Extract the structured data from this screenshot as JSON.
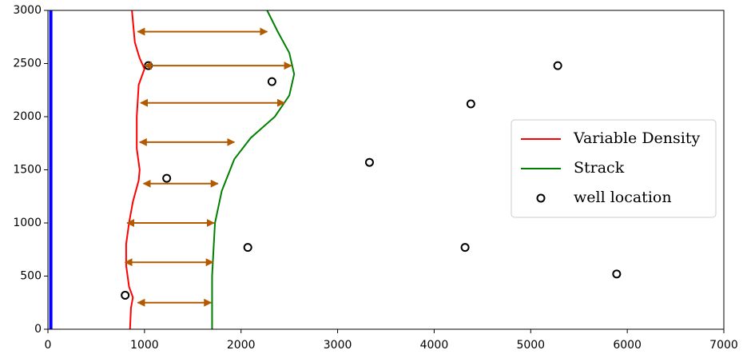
{
  "chart_data": {
    "type": "line",
    "xlim": [
      0,
      7000
    ],
    "ylim": [
      0,
      3000
    ],
    "xticks": [
      0,
      1000,
      2000,
      3000,
      4000,
      5000,
      6000,
      7000
    ],
    "yticks": [
      0,
      500,
      1000,
      1500,
      2000,
      2500,
      3000
    ],
    "grid": false,
    "legend": "right",
    "boundary": {
      "x": 30,
      "color": "#0000ff"
    },
    "series": [
      {
        "name": "Variable Density",
        "color": "#ff0000",
        "style": "line",
        "x": [
          850,
          860,
          880,
          840,
          810,
          810,
          840,
          880,
          940,
          950,
          920,
          920,
          940,
          1000,
          950,
          900,
          870
        ],
        "values": [
          0,
          200,
          300,
          400,
          600,
          800,
          1000,
          1200,
          1400,
          1500,
          1700,
          2000,
          2300,
          2450,
          2550,
          2700,
          3000
        ]
      },
      {
        "name": "Strack",
        "color": "#008000",
        "style": "line",
        "x": [
          1700,
          1700,
          1730,
          1800,
          1930,
          2100,
          2350,
          2500,
          2550,
          2500,
          2380,
          2270
        ],
        "values": [
          0,
          500,
          1000,
          1300,
          1600,
          1800,
          2000,
          2200,
          2400,
          2600,
          2800,
          3000
        ]
      },
      {
        "name": "well location",
        "color": "#000000",
        "style": "marker",
        "x": [
          800,
          2070,
          1230,
          1040,
          2320,
          3330,
          4380,
          5280,
          4320,
          5890
        ],
        "values": [
          320,
          770,
          1420,
          2480,
          2330,
          1570,
          2120,
          2480,
          770,
          520
        ]
      }
    ],
    "arrows": {
      "color": "#b35900",
      "y": [
        2800,
        2480,
        2130,
        1760,
        1370,
        1000,
        630,
        250
      ],
      "x1": [
        930,
        1000,
        960,
        950,
        990,
        820,
        800,
        930
      ],
      "x2": [
        2270,
        2520,
        2450,
        1930,
        1760,
        1720,
        1710,
        1690
      ]
    }
  }
}
